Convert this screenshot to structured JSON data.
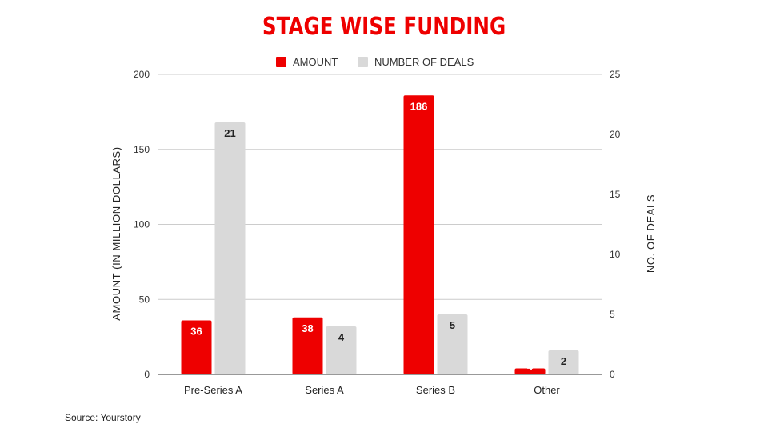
{
  "chart_data": {
    "type": "bar",
    "title": "STAGE WISE FUNDING",
    "categories": [
      "Pre-Series A",
      "Series A",
      "Series B",
      "Other"
    ],
    "series": [
      {
        "name": "AMOUNT",
        "axis": "left",
        "color": "#ee0000",
        "label_color": "#ffffff",
        "values": [
          36,
          38,
          186,
          4
        ]
      },
      {
        "name": "NUMBER OF DEALS",
        "axis": "right",
        "color": "#d9d9d9",
        "label_color": "#222222",
        "values": [
          21,
          4,
          5,
          2
        ]
      }
    ],
    "ylabel": "AMOUNT (IN MILLION DOLLARS)",
    "y2label": "NO. OF DEALS",
    "ylim": [
      0,
      200
    ],
    "y2lim": [
      0,
      25
    ],
    "yticks": [
      "0",
      "50",
      "100",
      "150",
      "200"
    ],
    "y2ticks": [
      "0",
      "5",
      "10",
      "15",
      "20",
      "25"
    ],
    "grid": true,
    "legend_position": "top-center"
  },
  "footer": {
    "source": "Source: Yourstory"
  }
}
